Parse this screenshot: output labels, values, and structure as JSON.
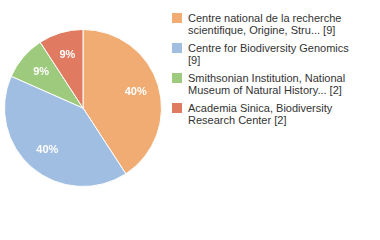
{
  "chart_data": {
    "type": "pie",
    "categories": [
      "Centre national de la recherche scientifique, Origine, Stru... [9]",
      "Centre for Biodiversity Genomics [9]",
      "Smithsonian Institution, National Museum of Natural History... [2]",
      "Academia Sinica, Biodiversity Research Center [2]"
    ],
    "values": [
      40,
      40,
      9,
      9
    ],
    "value_labels": [
      "40%",
      "40%",
      "9%",
      "9%"
    ],
    "colors": [
      "#f0ac72",
      "#a0bde2",
      "#9dca7c",
      "#e07b62"
    ],
    "data_labels": true,
    "legend": "right"
  }
}
